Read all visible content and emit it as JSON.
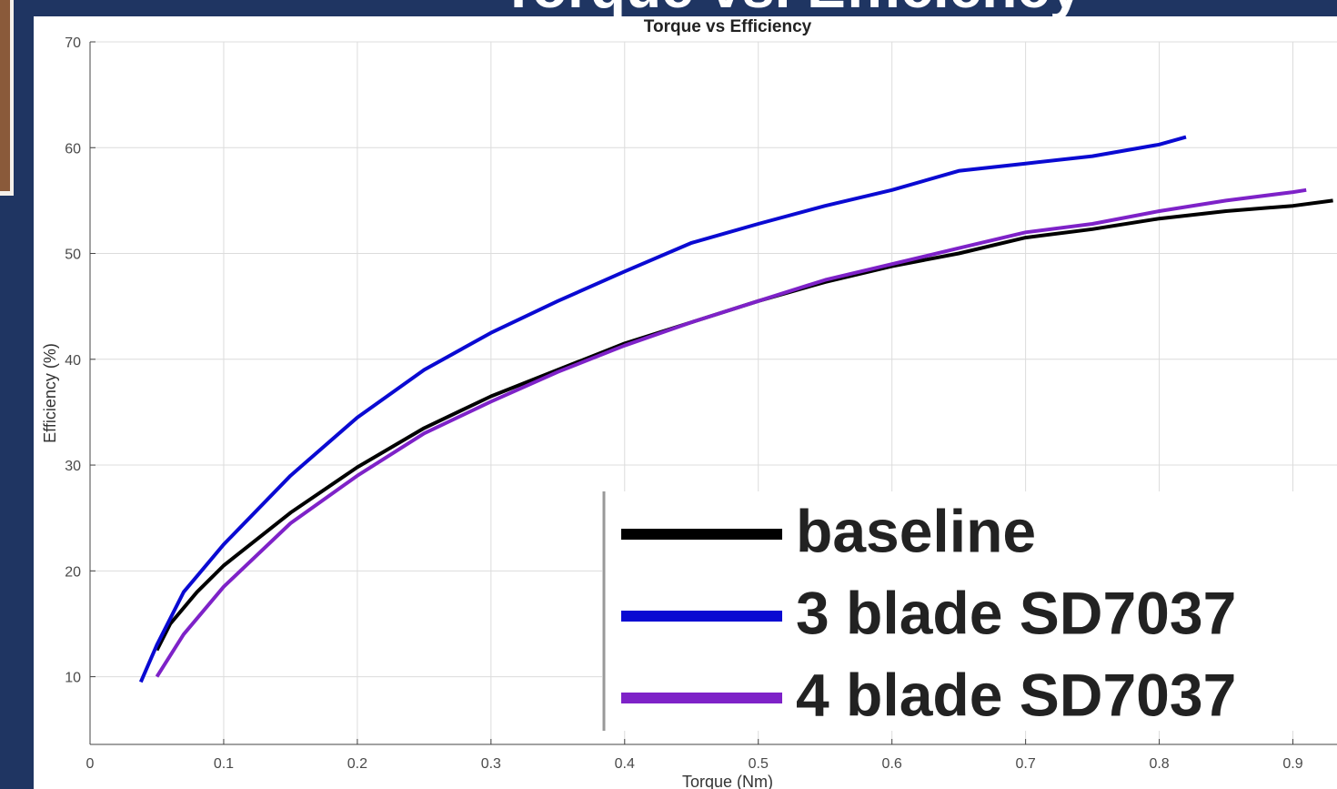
{
  "slide_title": "Torque vs. Efficiency",
  "chart_data": {
    "type": "line",
    "title": "Torque vs Efficiency",
    "x_label": "Torque (Nm)",
    "y_label": "Efficiency (%)",
    "xlim": [
      0,
      0.933
    ],
    "ylim": [
      3.6,
      70
    ],
    "xticks": [
      0,
      0.1,
      0.2,
      0.3,
      0.4,
      0.5,
      0.6,
      0.7,
      0.8,
      0.9
    ],
    "yticks": [
      10,
      20,
      30,
      40,
      50,
      60,
      70
    ],
    "grid": true,
    "legend": "lower right",
    "series": [
      {
        "name": "baseline",
        "color": "#000000",
        "x": [
          0.05,
          0.06,
          0.08,
          0.1,
          0.15,
          0.2,
          0.25,
          0.3,
          0.35,
          0.4,
          0.45,
          0.5,
          0.55,
          0.6,
          0.65,
          0.7,
          0.75,
          0.8,
          0.85,
          0.9,
          0.93
        ],
        "values": [
          12.5,
          15,
          18,
          20.5,
          25.5,
          29.8,
          33.5,
          36.5,
          39,
          41.5,
          43.5,
          45.5,
          47.3,
          48.8,
          50,
          51.5,
          52.3,
          53.3,
          54,
          54.5,
          55
        ]
      },
      {
        "name": "3 blade SD7037",
        "color": "#0a0ad2",
        "x": [
          0.038,
          0.05,
          0.07,
          0.1,
          0.15,
          0.2,
          0.25,
          0.3,
          0.35,
          0.4,
          0.45,
          0.5,
          0.55,
          0.6,
          0.65,
          0.7,
          0.75,
          0.8,
          0.82
        ],
        "values": [
          9.5,
          13,
          18,
          22.5,
          29,
          34.5,
          39,
          42.5,
          45.5,
          48.3,
          51,
          52.8,
          54.5,
          56,
          57.8,
          58.5,
          59.2,
          60.3,
          61
        ]
      },
      {
        "name": "4 blade SD7037",
        "color": "#7e22c8",
        "x": [
          0.05,
          0.07,
          0.1,
          0.15,
          0.2,
          0.25,
          0.3,
          0.35,
          0.4,
          0.45,
          0.5,
          0.55,
          0.6,
          0.65,
          0.7,
          0.75,
          0.8,
          0.85,
          0.9,
          0.91
        ],
        "values": [
          10,
          14,
          18.5,
          24.5,
          29,
          33,
          36,
          38.8,
          41.3,
          43.5,
          45.5,
          47.5,
          49,
          50.5,
          52,
          52.8,
          54,
          55,
          55.8,
          56
        ]
      }
    ]
  }
}
